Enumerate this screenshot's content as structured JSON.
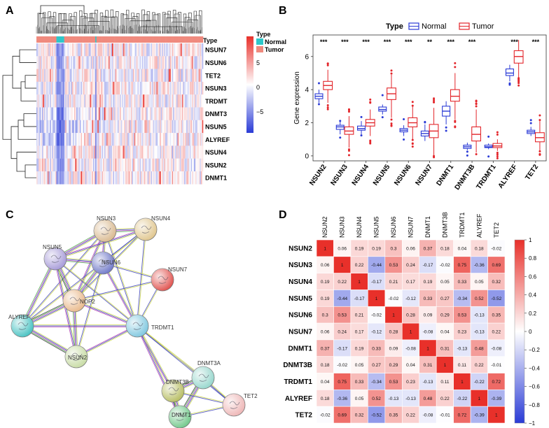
{
  "panels": {
    "a": "A",
    "b": "B",
    "c": "C",
    "d": "D"
  },
  "colors": {
    "normal": "#2b3bd6",
    "tumor": "#e3262b",
    "normal_fill": "#2ec7c9",
    "tumor_fill": "#f08a7e",
    "heat_high": "#e8302a",
    "heat_low": "#2a3bd6"
  },
  "chart_data": [
    {
      "type": "heatmap",
      "panel": "A",
      "rows": [
        "NSUN7",
        "NSUN6",
        "TET2",
        "NSUN3",
        "TRDMT",
        "DNMT3",
        "NSUN5",
        "ALYREF",
        "NSUN4",
        "NSUN2",
        "DNMT1"
      ],
      "annotation": {
        "label": "Type",
        "categories": [
          "Normal",
          "Tumor"
        ]
      },
      "colorbar": {
        "ticks": [
          "5",
          "0",
          "−5"
        ],
        "range": [
          -7,
          7
        ]
      },
      "clustered": true
    },
    {
      "type": "box",
      "panel": "B",
      "legend": {
        "title": "Type",
        "entries": [
          "Normal",
          "Tumor"
        ],
        "position": "top"
      },
      "ylabel": "Gene expression",
      "ylim": [
        -0.3,
        7.3
      ],
      "yticks": [
        0,
        2,
        4,
        6
      ],
      "categories": [
        "NSUN2",
        "NSUN3",
        "NSUN4",
        "NSUN5",
        "NSUN6",
        "NSUN7",
        "DNMT1",
        "DNMT3B",
        "TRDMT1",
        "ALYREF",
        "TET2"
      ],
      "significance": [
        "***",
        "***",
        "***",
        "***",
        "***",
        "**",
        "***",
        "***",
        "",
        "***",
        "***"
      ],
      "series": [
        {
          "name": "Normal",
          "boxes": [
            {
              "min": 3.2,
              "q1": 3.45,
              "median": 3.6,
              "q3": 3.75,
              "max": 4.0
            },
            {
              "min": 1.3,
              "q1": 1.6,
              "median": 1.75,
              "q3": 1.85,
              "max": 2.1
            },
            {
              "min": 1.3,
              "q1": 1.55,
              "median": 1.65,
              "q3": 1.8,
              "max": 2.1
            },
            {
              "min": 2.5,
              "q1": 2.7,
              "median": 2.8,
              "q3": 2.95,
              "max": 3.1
            },
            {
              "min": 1.2,
              "q1": 1.45,
              "median": 1.55,
              "q3": 1.65,
              "max": 1.85
            },
            {
              "min": 0.9,
              "q1": 1.2,
              "median": 1.35,
              "q3": 1.5,
              "max": 1.9
            },
            {
              "min": 1.9,
              "q1": 2.4,
              "median": 2.7,
              "q3": 3.0,
              "max": 3.3
            },
            {
              "min": 0.35,
              "q1": 0.45,
              "median": 0.55,
              "q3": 0.65,
              "max": 0.8
            },
            {
              "min": 0.4,
              "q1": 0.5,
              "median": 0.55,
              "q3": 0.65,
              "max": 0.75
            },
            {
              "min": 4.5,
              "q1": 4.85,
              "median": 5.0,
              "q3": 5.25,
              "max": 5.5
            },
            {
              "min": 1.2,
              "q1": 1.35,
              "median": 1.45,
              "q3": 1.55,
              "max": 1.75
            }
          ]
        },
        {
          "name": "Tumor",
          "boxes": [
            {
              "min": 3.2,
              "q1": 4.0,
              "median": 4.25,
              "q3": 4.5,
              "max": 5.2
            },
            {
              "min": 0.5,
              "q1": 1.3,
              "median": 1.5,
              "q3": 1.75,
              "max": 2.4
            },
            {
              "min": 1.2,
              "q1": 1.8,
              "median": 2.0,
              "q3": 2.2,
              "max": 2.8
            },
            {
              "min": 2.3,
              "q1": 3.4,
              "median": 3.75,
              "q3": 4.1,
              "max": 4.9
            },
            {
              "min": 1.0,
              "q1": 1.75,
              "median": 2.0,
              "q3": 2.3,
              "max": 3.0
            },
            {
              "min": 0.0,
              "q1": 1.1,
              "median": 1.5,
              "q3": 1.9,
              "max": 2.9
            },
            {
              "min": 2.2,
              "q1": 3.3,
              "median": 3.6,
              "q3": 4.0,
              "max": 5.0
            },
            {
              "min": 0.2,
              "q1": 0.9,
              "median": 1.3,
              "q3": 1.75,
              "max": 2.8
            },
            {
              "min": 0.3,
              "q1": 0.5,
              "median": 0.6,
              "q3": 0.75,
              "max": 1.0
            },
            {
              "min": 4.7,
              "q1": 5.6,
              "median": 6.0,
              "q3": 6.35,
              "max": 7.0
            },
            {
              "min": 0.3,
              "q1": 0.85,
              "median": 1.1,
              "q3": 1.4,
              "max": 2.1
            }
          ]
        }
      ]
    },
    {
      "type": "network",
      "panel": "C",
      "nodes": [
        "NSUN3",
        "NSUN4",
        "NSUN5",
        "NSUN6",
        "NSUN7",
        "NOP2",
        "ALYREF",
        "TRDMT1",
        "NSUN2",
        "DNMT3A",
        "DNMT3B",
        "TET2",
        "DNMT1"
      ]
    },
    {
      "type": "heatmap",
      "panel": "D",
      "labels": [
        "NSUN2",
        "NSUN3",
        "NSUN4",
        "NSUN5",
        "NSUN6",
        "NSUN7",
        "DNMT1",
        "DNMT3B",
        "TRDMT1",
        "ALYREF",
        "TET2"
      ],
      "colorbar_ticks": [
        "1",
        "0.8",
        "0.6",
        "0.4",
        "0.2",
        "0",
        "−0.2",
        "−0.4",
        "−0.6",
        "−0.8",
        "−1"
      ],
      "values": [
        [
          1,
          0.06,
          0.19,
          0.19,
          0.3,
          0.06,
          0.37,
          0.18,
          0.04,
          0.18,
          -0.02
        ],
        [
          0.06,
          1,
          0.22,
          -0.44,
          0.53,
          0.24,
          -0.17,
          -0.02,
          0.75,
          -0.36,
          0.69
        ],
        [
          0.19,
          0.22,
          1,
          -0.17,
          0.21,
          0.17,
          0.19,
          0.05,
          0.33,
          0.05,
          0.32
        ],
        [
          0.19,
          -0.44,
          -0.17,
          1,
          -0.02,
          -0.12,
          0.33,
          0.27,
          -0.34,
          0.52,
          -0.52
        ],
        [
          0.3,
          0.53,
          0.21,
          -0.02,
          1,
          0.28,
          0.09,
          0.29,
          0.53,
          -0.13,
          0.35
        ],
        [
          0.06,
          0.24,
          0.17,
          -0.12,
          0.28,
          1,
          -0.08,
          0.04,
          0.23,
          -0.13,
          0.22
        ],
        [
          0.37,
          -0.17,
          0.19,
          0.33,
          0.09,
          -0.08,
          1,
          0.31,
          -0.13,
          0.48,
          -0.08
        ],
        [
          0.18,
          -0.02,
          0.05,
          0.27,
          0.29,
          0.04,
          0.31,
          1,
          0.11,
          0.22,
          -0.01
        ],
        [
          0.04,
          0.75,
          0.33,
          -0.34,
          0.53,
          0.23,
          -0.13,
          0.11,
          1,
          -0.22,
          0.72
        ],
        [
          0.18,
          -0.36,
          0.05,
          0.52,
          -0.13,
          -0.13,
          0.48,
          0.22,
          -0.22,
          1,
          -0.39
        ],
        [
          -0.02,
          0.69,
          0.32,
          -0.52,
          0.35,
          0.22,
          -0.08,
          -0.01,
          0.72,
          -0.39,
          1
        ]
      ]
    }
  ]
}
